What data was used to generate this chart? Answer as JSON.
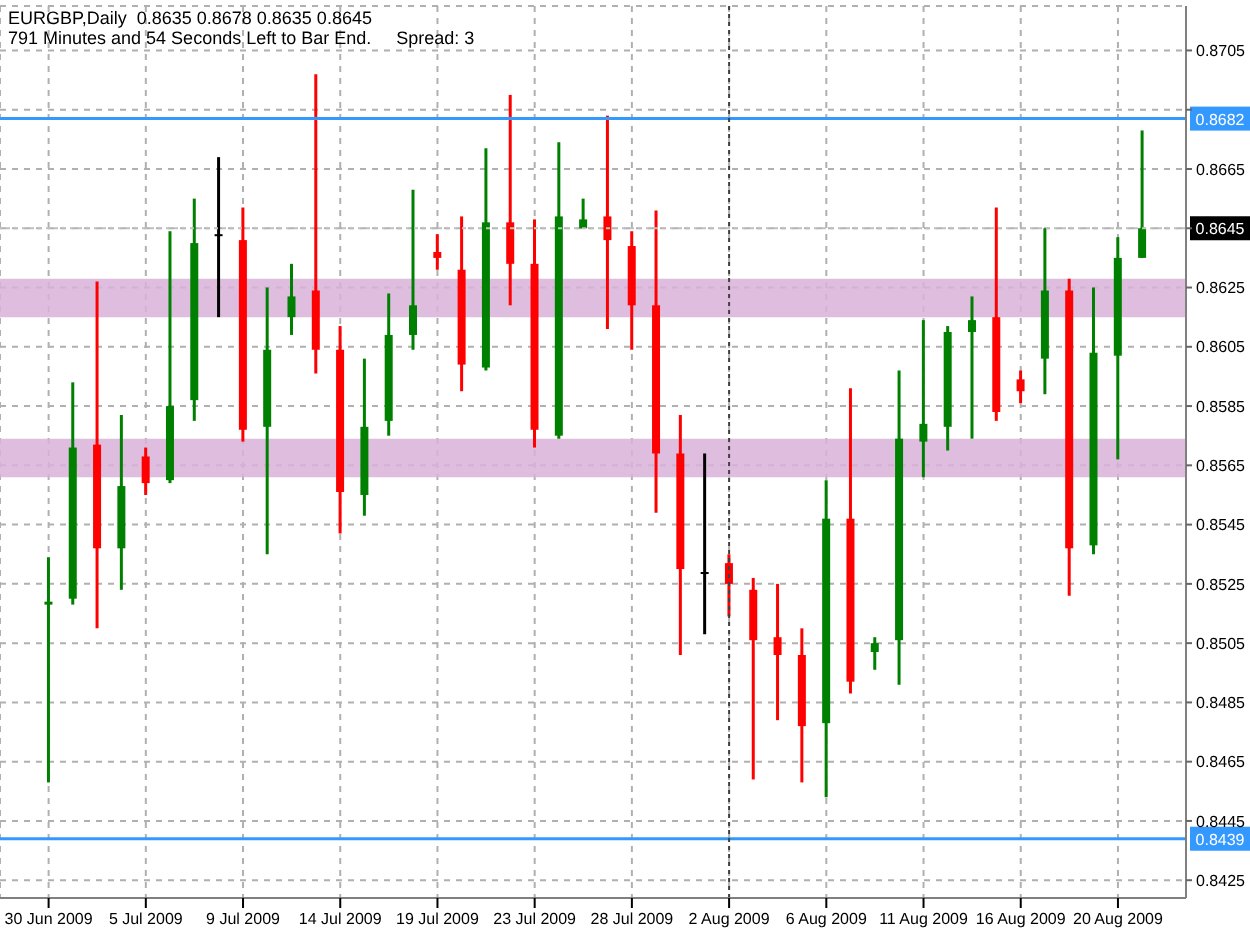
{
  "chart_data": {
    "type": "candlestick",
    "title": "EURGBP,Daily  0.8635 0.8678 0.8635 0.8645",
    "annotations": [
      "791 Minutes and 54 Seconds Left to Bar End.     Spread: 3"
    ],
    "categories": [
      "30 Jun 2009",
      null,
      null,
      null,
      "5 Jul 2009",
      null,
      null,
      null,
      "9 Jul 2009",
      null,
      null,
      null,
      "14 Jul 2009",
      null,
      null,
      null,
      "19 Jul 2009",
      null,
      null,
      null,
      "23 Jul 2009",
      null,
      null,
      null,
      "28 Jul 2009",
      null,
      null,
      null,
      "2 Aug 2009",
      null,
      null,
      null,
      "6 Aug 2009",
      null,
      null,
      null,
      "11 Aug 2009",
      null,
      null,
      null,
      "16 Aug 2009",
      null,
      null,
      null,
      "20 Aug 2009",
      null
    ],
    "ohlc": [
      [
        0.8518,
        0.8534,
        0.8458,
        0.8519
      ],
      [
        0.852,
        0.8593,
        0.8518,
        0.8571
      ],
      [
        0.8572,
        0.8627,
        0.851,
        0.8537
      ],
      [
        0.8537,
        0.8582,
        0.8523,
        0.8558
      ],
      [
        0.8568,
        0.8571,
        0.8555,
        0.8559
      ],
      [
        0.856,
        0.8644,
        0.8559,
        0.8585
      ],
      [
        0.8587,
        0.8655,
        0.858,
        0.864
      ],
      [
        0.8643,
        0.8669,
        0.8615,
        0.8643
      ],
      [
        0.8641,
        0.8652,
        0.8573,
        0.8577
      ],
      [
        0.8578,
        0.8625,
        0.8535,
        0.8604
      ],
      [
        0.8615,
        0.8633,
        0.8609,
        0.8622
      ],
      [
        0.8624,
        0.8697,
        0.8596,
        0.8604
      ],
      [
        0.8604,
        0.8612,
        0.8542,
        0.8556
      ],
      [
        0.8555,
        0.8601,
        0.8548,
        0.8578
      ],
      [
        0.858,
        0.8623,
        0.8575,
        0.8609
      ],
      [
        0.8609,
        0.8658,
        0.8604,
        0.8619
      ],
      [
        0.8637,
        0.8643,
        0.8631,
        0.8635
      ],
      [
        0.8631,
        0.8649,
        0.859,
        0.8599
      ],
      [
        0.8598,
        0.8672,
        0.8597,
        0.8647
      ],
      [
        0.8647,
        0.869,
        0.8619,
        0.8633
      ],
      [
        0.8633,
        0.8648,
        0.8571,
        0.8577
      ],
      [
        0.8575,
        0.8674,
        0.8574,
        0.8649
      ],
      [
        0.8645,
        0.8655,
        0.8645,
        0.8648
      ],
      [
        0.8649,
        0.8683,
        0.8611,
        0.8641
      ],
      [
        0.8639,
        0.8644,
        0.8604,
        0.8619
      ],
      [
        0.8619,
        0.8651,
        0.8549,
        0.8569
      ],
      [
        0.8569,
        0.8582,
        0.8501,
        0.853
      ],
      [
        0.8529,
        0.8569,
        0.8508,
        0.8529
      ],
      [
        0.8532,
        0.8535,
        0.8514,
        0.8525
      ],
      [
        0.8523,
        0.8527,
        0.8459,
        0.8506
      ],
      [
        0.8507,
        0.8525,
        0.8479,
        0.8501
      ],
      [
        0.8501,
        0.851,
        0.8458,
        0.8477
      ],
      [
        0.8478,
        0.856,
        0.8453,
        0.8547
      ],
      [
        0.8547,
        0.8591,
        0.8488,
        0.8492
      ],
      [
        0.8502,
        0.8507,
        0.8496,
        0.8505
      ],
      [
        0.8506,
        0.8597,
        0.8491,
        0.8574
      ],
      [
        0.8573,
        0.8614,
        0.8561,
        0.8579
      ],
      [
        0.8578,
        0.8612,
        0.857,
        0.861
      ],
      [
        0.861,
        0.8622,
        0.8574,
        0.8614
      ],
      [
        0.8615,
        0.8652,
        0.858,
        0.8583
      ],
      [
        0.8594,
        0.8597,
        0.8586,
        0.859
      ],
      [
        0.8601,
        0.8645,
        0.8589,
        0.8624
      ],
      [
        0.8624,
        0.8628,
        0.8521,
        0.8537
      ],
      [
        0.8538,
        0.8625,
        0.8535,
        0.8603
      ],
      [
        0.8602,
        0.8642,
        0.8567,
        0.8635
      ],
      [
        0.8635,
        0.8678,
        0.8635,
        0.8645
      ]
    ],
    "colors": [
      "#008000",
      "#008000",
      "#ff0000",
      "#008000",
      "#ff0000",
      "#008000",
      "#008000",
      "#000000",
      "#ff0000",
      "#008000",
      "#008000",
      "#ff0000",
      "#ff0000",
      "#008000",
      "#008000",
      "#008000",
      "#ff0000",
      "#ff0000",
      "#008000",
      "#ff0000",
      "#ff0000",
      "#008000",
      "#008000",
      "#ff0000",
      "#ff0000",
      "#ff0000",
      "#ff0000",
      "#000000",
      "#ff0000",
      "#ff0000",
      "#ff0000",
      "#ff0000",
      "#008000",
      "#ff0000",
      "#008000",
      "#008000",
      "#008000",
      "#008000",
      "#008000",
      "#ff0000",
      "#ff0000",
      "#008000",
      "#ff0000",
      "#008000",
      "#008000",
      "#008000"
    ],
    "ylim": [
      0.8419,
      0.872
    ],
    "yticks": [
      0.8425,
      0.8445,
      0.8465,
      0.8485,
      0.8505,
      0.8525,
      0.8545,
      0.8565,
      0.8585,
      0.8605,
      0.8625,
      {
        "value": 0.8645,
        "label": null
      },
      0.8665,
      {
        "value": 0.8685,
        "label": null
      },
      0.8705
    ],
    "grid": true,
    "ref_lines": [
      {
        "axis": "y",
        "value": 0.8682,
        "label": "0.8682",
        "color": "#3399ff",
        "line_style": "solid"
      },
      {
        "axis": "y",
        "value": 0.8439,
        "label": "0.8439",
        "color": "#3399ff",
        "line_style": "solid"
      },
      {
        "axis": "y",
        "value": 0.8645,
        "label": "0.8645",
        "color": "#c0c0c0",
        "line_style": "dotted"
      },
      {
        "axis": "x",
        "value": "2 Aug 2009",
        "color": "#404040",
        "line_style": "dotted"
      }
    ],
    "bands": [
      {
        "axis": "y",
        "from": 0.8615,
        "to": 0.8628,
        "color": "#d8b2d8"
      },
      {
        "axis": "y",
        "from": 0.8561,
        "to": 0.8574,
        "color": "#d8b2d8"
      }
    ]
  }
}
